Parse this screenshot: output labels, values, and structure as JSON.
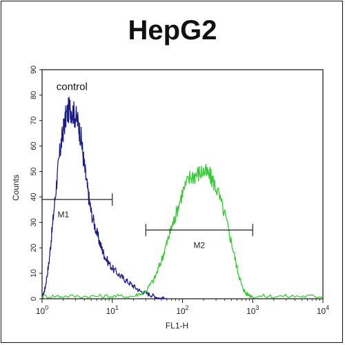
{
  "chart_data": {
    "type": "line",
    "title": "HepG2",
    "xlabel": "FL1-H",
    "ylabel": "Counts",
    "x_scale": "log",
    "xlim": [
      1,
      10000
    ],
    "ylim": [
      0,
      90
    ],
    "x_ticks": [
      {
        "value": 1,
        "base": "10",
        "exp": "0"
      },
      {
        "value": 10,
        "base": "10",
        "exp": "1"
      },
      {
        "value": 100,
        "base": "10",
        "exp": "2"
      },
      {
        "value": 1000,
        "base": "10",
        "exp": "3"
      },
      {
        "value": 10000,
        "base": "10",
        "exp": "4"
      }
    ],
    "y_ticks": [
      0,
      10,
      20,
      30,
      40,
      50,
      60,
      70,
      80,
      90
    ],
    "annotations": [
      {
        "text": "control",
        "x": 1.6,
        "y": 82
      }
    ],
    "markers": [
      {
        "label": "M1",
        "x_start": 1.0,
        "x_end": 10.0,
        "y": 39
      },
      {
        "label": "M2",
        "x_start": 30,
        "x_end": 1000,
        "y": 27
      }
    ],
    "series": [
      {
        "color": "#1a1a8c",
        "x": [
          1.0,
          1.1,
          1.25,
          1.4,
          1.6,
          1.8,
          2.0,
          2.2,
          2.5,
          2.8,
          3.2,
          3.6,
          4.0,
          4.5,
          5.0,
          6.0,
          7.0,
          8.0,
          10,
          13,
          16,
          20,
          25,
          32,
          40,
          50,
          60
        ],
        "y": [
          0,
          4,
          14,
          28,
          45,
          58,
          66,
          72,
          75,
          73,
          70,
          63,
          52,
          42,
          34,
          26,
          20,
          16,
          12,
          9,
          7,
          5,
          3,
          2,
          1,
          0,
          0
        ]
      },
      {
        "color": "#33cc33",
        "x": [
          1.0,
          2.0,
          5.0,
          10,
          20,
          30,
          40,
          50,
          60,
          70,
          80,
          100,
          130,
          160,
          200,
          250,
          300,
          400,
          500,
          600,
          700,
          800,
          1000,
          2000,
          5000,
          10000
        ],
        "y": [
          1,
          1,
          1,
          1,
          1,
          3,
          8,
          15,
          22,
          28,
          33,
          42,
          48,
          49,
          50,
          48,
          44,
          33,
          22,
          12,
          5,
          2,
          1,
          1,
          1,
          1
        ]
      }
    ]
  }
}
